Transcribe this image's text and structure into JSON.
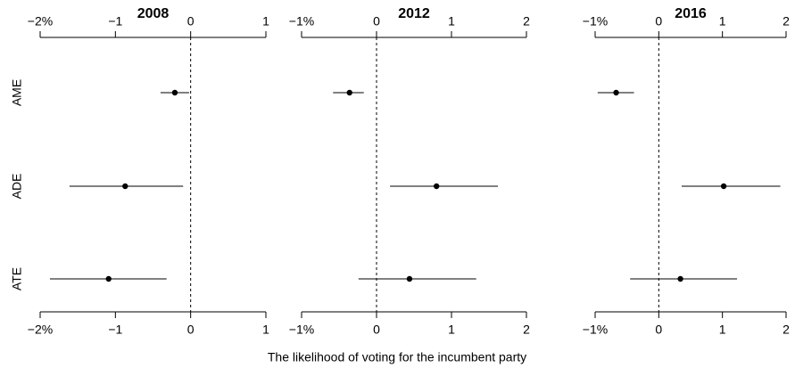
{
  "categories": [
    "AME",
    "ADE",
    "ATE"
  ],
  "xlabel": "The likelihood of voting for the incumbent party",
  "chart_data": [
    {
      "type": "dotwhisker",
      "title": "2008",
      "values": [
        -0.21,
        -0.87,
        -1.09
      ],
      "lower": [
        -0.4,
        -1.61,
        -1.87
      ],
      "upper": [
        -0.02,
        -0.1,
        -0.32
      ],
      "xlim": [
        -2,
        1
      ],
      "xticks": [
        {
          "value": -2,
          "label": "−2%"
        },
        {
          "value": -1,
          "label": "−1"
        },
        0,
        1
      ]
    },
    {
      "type": "dotwhisker",
      "title": "2012",
      "values": [
        -0.36,
        0.8,
        0.44
      ],
      "lower": [
        -0.58,
        0.18,
        -0.24
      ],
      "upper": [
        -0.17,
        1.62,
        1.33
      ],
      "xlim": [
        -1,
        2
      ],
      "xticks": [
        {
          "value": -1,
          "label": "−1%"
        },
        0,
        1,
        2
      ]
    },
    {
      "type": "dotwhisker",
      "title": "2016",
      "values": [
        -0.67,
        1.02,
        0.34
      ],
      "lower": [
        -0.96,
        0.36,
        -0.45
      ],
      "upper": [
        -0.39,
        1.91,
        1.23
      ],
      "xlim": [
        -1,
        2
      ],
      "xticks": [
        {
          "value": -1,
          "label": "−1%"
        },
        0,
        1,
        2
      ]
    }
  ]
}
